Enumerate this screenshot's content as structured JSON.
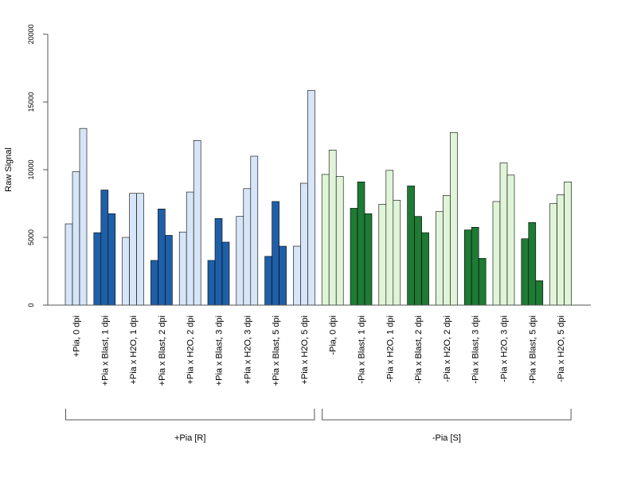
{
  "chart_data": {
    "type": "bar",
    "title": "",
    "xlabel": "",
    "ylabel": "Raw Signal",
    "ylim": [
      0,
      20000
    ],
    "yticks": [
      "0",
      "5000",
      "10000",
      "15000",
      "20000"
    ],
    "grid": false,
    "legend": "none",
    "categories": [
      "+Pia, 0 dpi",
      "+Pia x Blast, 1 dpi",
      "+Pia x H2O, 1 dpi",
      "+Pia x Blast, 2 dpi",
      "+Pia x H2O, 2 dpi",
      "+Pia x Blast, 3 dpi",
      "+Pia x H2O, 3 dpi",
      "+Pia x Blast, 5 dpi",
      "+Pia x H2O, 5 dpi",
      "-Pia, 0 dpi",
      "-Pia x Blast, 1 dpi",
      "-Pia x H2O, 1 dpi",
      "-Pia x Blast, 2 dpi",
      "-Pia x H2O, 2 dpi",
      "-Pia x Blast, 3 dpi",
      "-Pia x H2O, 3 dpi",
      "-Pia x Blast, 5 dpi",
      "-Pia x H2O, 5 dpi"
    ],
    "values": [
      [
        6000,
        9850,
        13050
      ],
      [
        5350,
        8500,
        6750
      ],
      [
        5000,
        8250,
        8250
      ],
      [
        3300,
        7100,
        5150
      ],
      [
        5400,
        8350,
        12150
      ],
      [
        3300,
        6400,
        4650
      ],
      [
        6550,
        8600,
        11000
      ],
      [
        3600,
        7650,
        4350
      ],
      [
        4350,
        9000,
        15850
      ],
      [
        9650,
        11450,
        9500
      ],
      [
        7150,
        9100,
        6750
      ],
      [
        7450,
        9950,
        7750
      ],
      [
        8800,
        6550,
        5350
      ],
      [
        6900,
        8100,
        12750
      ],
      [
        5550,
        5750,
        3450
      ],
      [
        7650,
        10500,
        9600
      ],
      [
        4900,
        6100,
        1800
      ],
      [
        7500,
        8150,
        9100
      ]
    ],
    "category_colors": [
      "#d6e5f7",
      "#1f5fa8",
      "#d6e5f7",
      "#1f5fa8",
      "#d6e5f7",
      "#1f5fa8",
      "#d6e5f7",
      "#1f5fa8",
      "#d6e5f7",
      "#e0f5d8",
      "#1e7a34",
      "#e0f5d8",
      "#1e7a34",
      "#e0f5d8",
      "#1e7a34",
      "#e0f5d8",
      "#1e7a34",
      "#e0f5d8"
    ],
    "groups": [
      {
        "label": "+Pia [R]",
        "from": 0,
        "to": 8
      },
      {
        "label": "-Pia [S]",
        "from": 9,
        "to": 17
      }
    ]
  }
}
